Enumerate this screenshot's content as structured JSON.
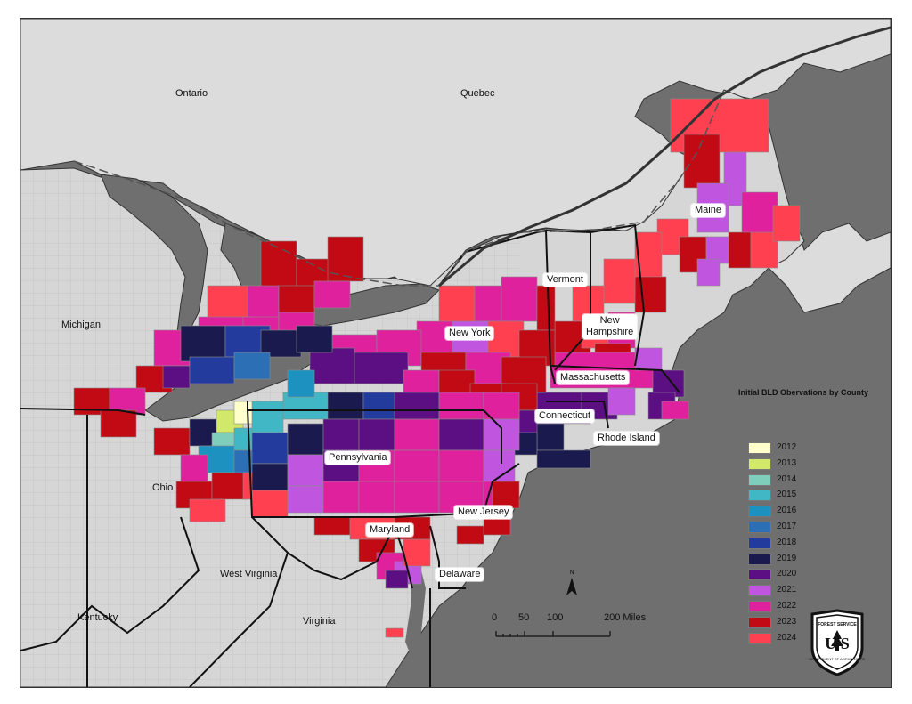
{
  "colors": {
    "ocean": "#6f6f6f",
    "land_canada": "#dcdcdc",
    "land_us": "#d6d6d6",
    "county_line": "#8a8a8a",
    "state_line": "#111111"
  },
  "labels": {
    "ontario": "Ontario",
    "quebec": "Quebec",
    "michigan": "Michigan",
    "maine": "Maine",
    "vermont": "Vermont",
    "new_hampshire": "New\nHampshire",
    "new_york": "New York",
    "massachusetts": "Massachusetts",
    "connecticut": "Connecticut",
    "rhode_island": "Rhode Island",
    "pennsylvania": "Pennsylvania",
    "ohio": "Ohio",
    "new_jersey": "New Jersey",
    "maryland": "Maryland",
    "delaware": "Delaware",
    "west_virginia": "West Virginia",
    "virginia": "Virginia",
    "kentucky": "Kentucky"
  },
  "legend": {
    "title": "Initial BLD Obervations by County",
    "items": [
      {
        "label": "2012",
        "color": "#ffffcc"
      },
      {
        "label": "2013",
        "color": "#d1e86b"
      },
      {
        "label": "2014",
        "color": "#7fcdbb"
      },
      {
        "label": "2015",
        "color": "#41b6c4"
      },
      {
        "label": "2016",
        "color": "#1d91c0"
      },
      {
        "label": "2017",
        "color": "#2c6fb5"
      },
      {
        "label": "2018",
        "color": "#223b9c"
      },
      {
        "label": "2019",
        "color": "#1a1a4e"
      },
      {
        "label": "2020",
        "color": "#5b0f82"
      },
      {
        "label": "2021",
        "color": "#c056e0"
      },
      {
        "label": "2022",
        "color": "#e0219e"
      },
      {
        "label": "2023",
        "color": "#c20a14"
      },
      {
        "label": "2024",
        "color": "#ff4050"
      }
    ]
  },
  "scale": {
    "ticks": [
      "0",
      "50",
      "100",
      "200 Miles"
    ]
  },
  "north": "N",
  "agency_badge": {
    "top_text": "FOREST SERVICE",
    "letters": "USFS",
    "bottom_text": "DEPARTMENT OF AGRICULTURE"
  }
}
